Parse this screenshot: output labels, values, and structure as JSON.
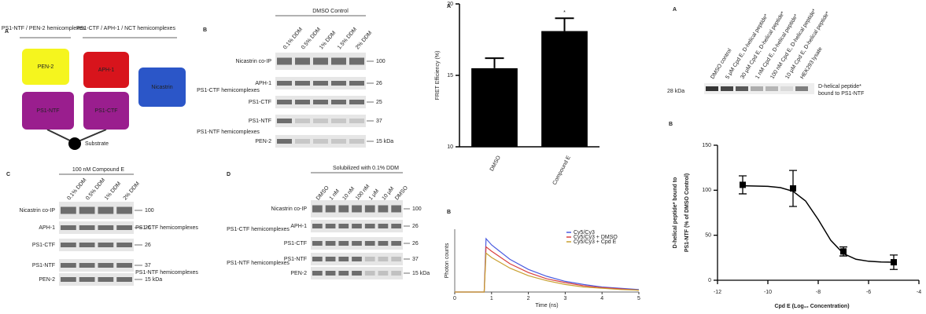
{
  "panel_a": {
    "letter": "A",
    "headers": [
      "PS1-NTF / PEN-2 hemicomplexes",
      "PS1-CTF / APH-1 / NCT hemicomplexes"
    ],
    "nodes": [
      "PEN-2",
      "APH-1",
      "Nicastrin",
      "PS1-NTF",
      "PS1-CTF",
      "Substrate"
    ]
  },
  "blots": [
    {
      "letter": "B",
      "header": "DMSO Control",
      "lanes": [
        "0.1% DDM",
        "0.5% DDM",
        "1% DDM",
        "1.5% DDM",
        "2% DDM"
      ],
      "rows": [
        "Nicastrin co-IP",
        "APH-1",
        "PS1-CTF",
        "PS1-NTF",
        "PEN-2"
      ],
      "groups": [
        "PS1-CTF hemicomplexes",
        "PS1-NTF hemicomplexes"
      ],
      "markers": [
        "100",
        "26",
        "25",
        "37",
        "15 kDa"
      ]
    },
    {
      "letter": "C",
      "header": "100 nM Compound E",
      "lanes": [
        "0.1% DDM",
        "0.5% DDM",
        "1% DDM",
        "2% DDM"
      ],
      "rows": [
        "Nicastrin co-IP",
        "APH-1",
        "PS1-CTF",
        "PS1-NTF",
        "PEN-2"
      ],
      "groups": [
        "PS1-CTF hemicomplexes",
        "PS1-NTF hemicomplexes"
      ],
      "markers": [
        "100",
        "26",
        "26",
        "37",
        "15 kDa"
      ]
    },
    {
      "letter": "D",
      "header": "Solubilized with 0.1% DDM",
      "lanes": [
        "DMSO",
        "1 nM",
        "10 nM",
        "100 nM",
        "1 μM",
        "10 μM",
        "DMSO"
      ],
      "rows": [
        "Nicastrin co-IP",
        "APH-1",
        "PS1-CTF",
        "PS1-NTF",
        "PEN-2"
      ],
      "groups": [
        "PS1-CTF hemicomplexes",
        "PS1-NTF hemicomplexes"
      ],
      "markers": [
        "100",
        "26",
        "26",
        "37",
        "15 kDa"
      ]
    }
  ],
  "right_blot": {
    "letter": "A",
    "lanes": [
      "DMSO control",
      "5 μM Cpd E, D-helical peptide*",
      "30 μM Cpd E, D-helical peptide*",
      "1 nM Cpd E, D-helical peptide*",
      "100 nM Cpd E, D-helical peptide*",
      "10 μM Cpd E, D-helical peptide*",
      "HEK293 lysate"
    ],
    "marker": "28 kDa",
    "label": [
      "D-helical peptide*",
      "bound to PS1-NTF"
    ]
  },
  "chart_data": [
    {
      "type": "bar",
      "panel": "A",
      "ylabel": "FRET Efficiency (%)",
      "categories": [
        "DMSO",
        "Compound E"
      ],
      "values": [
        15.5,
        18.1
      ],
      "errors": [
        0.7,
        0.9
      ],
      "annotation": "*",
      "color": "#000000",
      "ylim": [
        10,
        20
      ],
      "yticks": [
        10,
        15,
        20
      ]
    },
    {
      "type": "line",
      "panel": "B",
      "xlabel": "Time (ns)",
      "ylabel": "Photon counts",
      "x": [
        0,
        0.5,
        0.8,
        0.85,
        1,
        1.5,
        2,
        2.5,
        3,
        3.5,
        4,
        4.5,
        5
      ],
      "xlim": [
        0,
        5
      ],
      "xticks": [
        0,
        1,
        2,
        3,
        4,
        5
      ],
      "ylim": [
        0,
        100
      ],
      "series": [
        {
          "name": "Cy5/Cy3",
          "color": "#4a5be0",
          "values": [
            0,
            0,
            0,
            85,
            75,
            52,
            36,
            25,
            17,
            12,
            8,
            6,
            4
          ]
        },
        {
          "name": "Cy5/Cy3 + DMSO",
          "color": "#d94040",
          "values": [
            0,
            0,
            0,
            72,
            65,
            45,
            31,
            21,
            15,
            10,
            7,
            5,
            3
          ]
        },
        {
          "name": "Cy5/Cy3 + Cpd E",
          "color": "#c9a030",
          "values": [
            0,
            0,
            0,
            62,
            55,
            38,
            26,
            18,
            12,
            8,
            6,
            4,
            3
          ]
        }
      ]
    },
    {
      "type": "scatter",
      "panel": "B",
      "xlabel": "Cpd E (Log₁₀ Concentration)",
      "ylabel": [
        "D-helical peptide* bound to",
        "PS1-NTF (% of DMSO Control)"
      ],
      "x": [
        -11,
        -9,
        -7,
        -5
      ],
      "values": [
        106,
        102,
        32,
        20
      ],
      "errors": [
        10,
        20,
        5,
        8
      ],
      "fit": {
        "x": [
          -11,
          -10,
          -9.5,
          -9,
          -8.5,
          -8,
          -7.5,
          -7,
          -6.5,
          -6,
          -5.5,
          -5
        ],
        "values": [
          105,
          104.3,
          102.9,
          98.8,
          88,
          67.5,
          44.3,
          29.6,
          23.3,
          21.1,
          20.3,
          20.1
        ]
      },
      "xlim": [
        -12,
        -4
      ],
      "xticks": [
        -12,
        -10,
        -8,
        -6,
        -4
      ],
      "ylim": [
        0,
        150
      ],
      "yticks": [
        0,
        50,
        100,
        150
      ]
    }
  ]
}
